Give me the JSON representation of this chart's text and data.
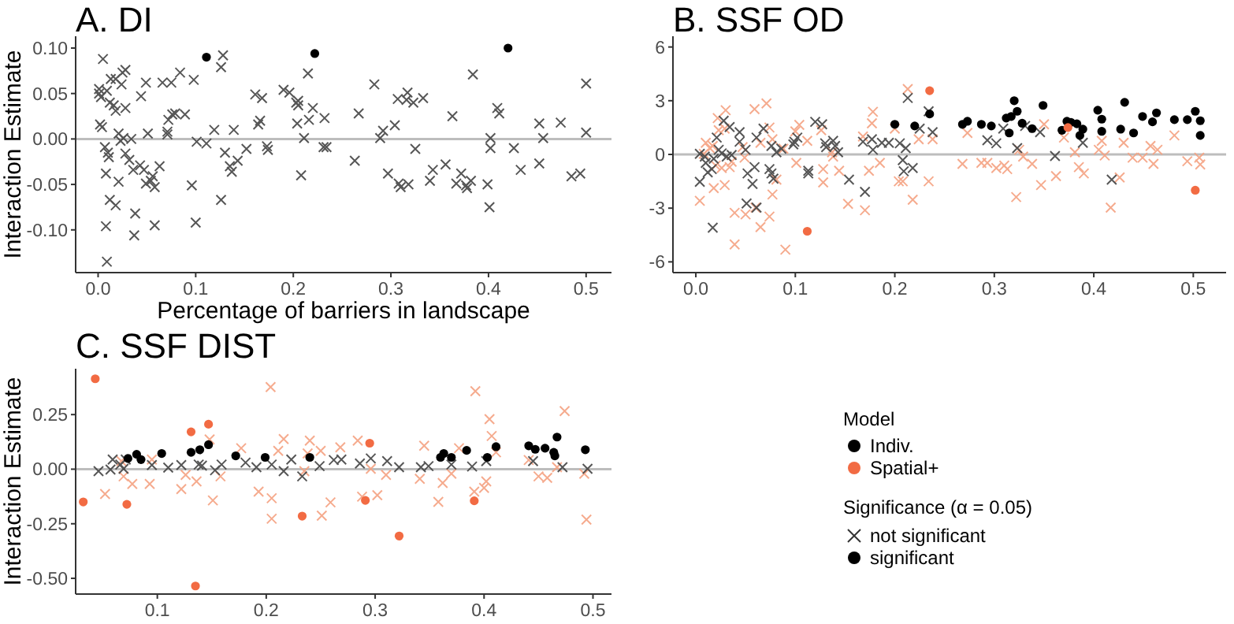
{
  "chart_data": [
    {
      "type": "scatter",
      "title": "A. DI",
      "xlabel": "Percentage of barriers in landscape",
      "ylabel": "Interaction Estimate",
      "xlim": [
        -0.023,
        0.526
      ],
      "ylim": [
        -0.147,
        0.113
      ],
      "xticks": [
        {
          "value": 0,
          "label": "0.0"
        },
        0.1,
        0.2,
        0.3,
        0.4,
        0.5
      ],
      "yticks": [
        {
          "value": -0.1,
          "label": "-0.10"
        },
        {
          "value": -0.05,
          "label": "-0.05"
        },
        {
          "value": 0,
          "label": "0.00"
        },
        {
          "value": 0.05,
          "label": "0.05"
        },
        {
          "value": 0.1,
          "label": "0.10"
        }
      ],
      "ref_lines": [
        {
          "axis": "y",
          "value": 0,
          "color": "#bdbdbd"
        }
      ],
      "legend": false,
      "series": [
        {
          "color": "#444444",
          "marker": "cross",
          "x": [
            0.005,
            0.001,
            0.001,
            0.003,
            0.009,
            0.002,
            0.004,
            0.013,
            0.018,
            0.012,
            0.016,
            0.018,
            0.024,
            0.025,
            0.028,
            0.028,
            0.021,
            0.023,
            0.026,
            0.034,
            0.007,
            0.01,
            0.011,
            0.008,
            0.012,
            0.018,
            0.008,
            0.009,
            0.021,
            0.028,
            0.032,
            0.036,
            0.038,
            0.037,
            0.044,
            0.049,
            0.051,
            0.043,
            0.047,
            0.049,
            0.054,
            0.056,
            0.058,
            0.058,
            0.063,
            0.066,
            0.071,
            0.071,
            0.072,
            0.075,
            0.076,
            0.079,
            0.084,
            0.089,
            0.098,
            0.096,
            0.101,
            0.111,
            0.1,
            0.119,
            0.126,
            0.128,
            0.13,
            0.126,
            0.135,
            0.137,
            0.139,
            0.143,
            0.152,
            0.164,
            0.166,
            0.161,
            0.168,
            0.173,
            0.174,
            0.19,
            0.196,
            0.203,
            0.205,
            0.205,
            0.204,
            0.208,
            0.211,
            0.215,
            0.216,
            0.22,
            0.232,
            0.231,
            0.234,
            0.263,
            0.267,
            0.283,
            0.289,
            0.292,
            0.297,
            0.304,
            0.307,
            0.308,
            0.31,
            0.317,
            0.318,
            0.316,
            0.323,
            0.325,
            0.333,
            0.34,
            0.343,
            0.356,
            0.363,
            0.367,
            0.372,
            0.377,
            0.378,
            0.382,
            0.384,
            0.399,
            0.401,
            0.402,
            0.402,
            0.409,
            0.411,
            0.426,
            0.433,
            0.452,
            0.452,
            0.456,
            0.474,
            0.485,
            0.494,
            0.5,
            0.5
          ],
          "values": [
            0.088,
            0.055,
            0.05,
            0.046,
            0.053,
            0.016,
            0.013,
            0.066,
            0.066,
            0.04,
            0.037,
            0.031,
            0.06,
            0.073,
            0.076,
            0.034,
            0.006,
            -0.002,
            0.001,
            0,
            -0.009,
            -0.015,
            -0.02,
            -0.038,
            -0.067,
            -0.073,
            -0.096,
            -0.135,
            -0.047,
            -0.016,
            -0.023,
            -0.034,
            -0.082,
            -0.106,
            0.047,
            0.062,
            0.006,
            -0.029,
            -0.034,
            -0.049,
            -0.046,
            -0.041,
            -0.053,
            -0.095,
            -0.03,
            0.062,
            0.008,
            0.005,
            0.021,
            0.062,
            0.027,
            0.028,
            0.073,
            0.027,
            0.065,
            -0.051,
            -0.003,
            -0.005,
            -0.092,
            0.01,
            0.079,
            0.092,
            -0.015,
            -0.067,
            -0.03,
            -0.036,
            0.01,
            -0.024,
            -0.011,
            0.016,
            0.02,
            0.049,
            0.045,
            -0.008,
            -0.012,
            0.054,
            0.051,
            0.04,
            0.042,
            0.037,
            0.017,
            -0.04,
            0.001,
            0.072,
            0.021,
            0.034,
            0.023,
            -0.009,
            -0.009,
            -0.024,
            0.028,
            0.06,
            0.001,
            0.009,
            -0.038,
            0.015,
            0.044,
            -0.049,
            -0.053,
            0.051,
            -0.05,
            0.043,
            0.04,
            -0.011,
            0.045,
            -0.046,
            -0.034,
            -0.028,
            0.025,
            -0.049,
            -0.038,
            -0.051,
            -0.054,
            -0.046,
            0.071,
            -0.05,
            -0.075,
            0.001,
            -0.01,
            0.034,
            0.028,
            -0.01,
            -0.034,
            0.017,
            -0.027,
            0.001,
            0.018,
            -0.041,
            -0.038,
            0.061,
            0.007
          ]
        },
        {
          "color": "#000000",
          "marker": "circle",
          "x": [
            0.111,
            0.222,
            0.42
          ],
          "values": [
            0.09,
            0.094,
            0.1
          ]
        }
      ]
    },
    {
      "type": "scatter",
      "title": "B. SSF OD",
      "xlim": [
        -0.023,
        0.533
      ],
      "ylim": [
        -6.6,
        6.6
      ],
      "xticks": [
        {
          "value": 0,
          "label": "0.0"
        },
        0.1,
        0.2,
        0.3,
        0.4,
        0.5
      ],
      "yticks": [
        -6,
        -3,
        0,
        3,
        6
      ],
      "ref_lines": [
        {
          "axis": "y",
          "value": 0,
          "color": "#bdbdbd"
        }
      ],
      "legend": false,
      "series": [
        {
          "color": "#f5a282",
          "marker": "cross",
          "x": [
            0.004,
            0.008,
            0.01,
            0.014,
            0.017,
            0.018,
            0.02,
            0.022,
            0.023,
            0.026,
            0.029,
            0.029,
            0.03,
            0.034,
            0.036,
            0.039,
            0.039,
            0.047,
            0.049,
            0.05,
            0.059,
            0.06,
            0.065,
            0.065,
            0.071,
            0.074,
            0.074,
            0.077,
            0.077,
            0.081,
            0.088,
            0.09,
            0.1,
            0.101,
            0.104,
            0.112,
            0.126,
            0.128,
            0.128,
            0.137,
            0.138,
            0.144,
            0.153,
            0.168,
            0.17,
            0.174,
            0.177,
            0.178,
            0.185,
            0.2,
            0.204,
            0.208,
            0.213,
            0.218,
            0.224,
            0.234,
            0.238,
            0.268,
            0.273,
            0.287,
            0.293,
            0.302,
            0.31,
            0.313,
            0.322,
            0.325,
            0.329,
            0.338,
            0.347,
            0.35,
            0.362,
            0.37,
            0.381,
            0.385,
            0.39,
            0.405,
            0.408,
            0.411,
            0.417,
            0.426,
            0.43,
            0.439,
            0.449,
            0.457,
            0.46,
            0.464,
            0.481,
            0.494,
            0.506,
            0.507
          ],
          "values": [
            -2.59,
            0.03,
            0.65,
            0.35,
            0.47,
            -1.88,
            -0.62,
            2.03,
            1.35,
            -0.76,
            1.44,
            -1.71,
            2.47,
            -0.71,
            -0.41,
            -3.26,
            -5.03,
            0.41,
            -0.18,
            -3.35,
            2.53,
            -2.97,
            0.65,
            -4.06,
            2.85,
            1.5,
            -3.47,
            -2.24,
            0.85,
            -1.41,
            0.32,
            -5.32,
            1.29,
            -0.47,
            1.65,
            0.76,
            1.35,
            -0.82,
            -1.56,
            0.12,
            -0.12,
            -0.91,
            -2.76,
            1.0,
            -3.12,
            -0.91,
            1.74,
            2.38,
            -0.47,
            1.44,
            -1.5,
            -1.5,
            3.65,
            -2.53,
            0.85,
            -1.5,
            0.85,
            -0.53,
            1.2,
            -0.47,
            -0.47,
            -0.76,
            -0.62,
            -0.82,
            -2.38,
            0.26,
            -0.12,
            -0.53,
            -1.71,
            1.68,
            -1.21,
            0.94,
            0.12,
            -0.71,
            -1.06,
            0.26,
            0.76,
            -0.06,
            -2.97,
            -1.29,
            0.65,
            -0.18,
            -0.18,
            0.47,
            -0.53,
            0.26,
            1.06,
            -0.38,
            -0.18,
            -0.56
          ]
        },
        {
          "color": "#444444",
          "marker": "cross",
          "x": [
            0.004,
            0.004,
            0.009,
            0.01,
            0.012,
            0.016,
            0.018,
            0.017,
            0.021,
            0.023,
            0.026,
            0.028,
            0.031,
            0.034,
            0.036,
            0.044,
            0.044,
            0.05,
            0.052,
            0.057,
            0.059,
            0.051,
            0.061,
            0.061,
            0.068,
            0.074,
            0.076,
            0.078,
            0.076,
            0.081,
            0.086,
            0.098,
            0.099,
            0.102,
            0.113,
            0.113,
            0.12,
            0.127,
            0.13,
            0.131,
            0.138,
            0.14,
            0.143,
            0.154,
            0.168,
            0.17,
            0.177,
            0.178,
            0.187,
            0.194,
            0.205,
            0.208,
            0.211,
            0.209,
            0.213,
            0.218,
            0.225,
            0.234,
            0.238,
            0.293,
            0.302,
            0.309,
            0.323,
            0.331,
            0.346,
            0.361,
            0.389,
            0.418
          ],
          "values": [
            0.03,
            -1.53,
            -0.12,
            -0.47,
            -1.0,
            -0.82,
            -0.24,
            -4.09,
            0.94,
            0.26,
            0.06,
            1.88,
            -0.12,
            1.53,
            -0.03,
            1.24,
            0.71,
            0.26,
            -1.06,
            -1.65,
            -0.71,
            -2.74,
            -2.97,
            0.94,
            1.44,
            -0.82,
            -1.06,
            -1.35,
            0.47,
            0.12,
            0.32,
            0.56,
            0.71,
            0.94,
            -0.91,
            -1.06,
            1.82,
            1.68,
            0.62,
            0.41,
            0.76,
            0.47,
            0.12,
            -1.41,
            0.71,
            -2.09,
            0.85,
            0.26,
            0.65,
            0.65,
            0.62,
            -0.32,
            0.35,
            -0.94,
            3.15,
            -0.76,
            1.44,
            2.41,
            1.24,
            0.79,
            0.62,
            1.44,
            0.35,
            1.59,
            1.24,
            -0.09,
            0.65,
            -1.41
          ]
        },
        {
          "color": "#000000",
          "marker": "circle",
          "x": [
            0.2,
            0.22,
            0.235,
            0.268,
            0.273,
            0.287,
            0.297,
            0.312,
            0.315,
            0.317,
            0.32,
            0.323,
            0.328,
            0.338,
            0.349,
            0.368,
            0.373,
            0.377,
            0.383,
            0.386,
            0.389,
            0.404,
            0.408,
            0.408,
            0.427,
            0.431,
            0.44,
            0.449,
            0.459,
            0.463,
            0.481,
            0.494,
            0.502,
            0.507,
            0.507
          ],
          "values": [
            1.68,
            1.59,
            2.26,
            1.68,
            1.85,
            1.68,
            1.59,
            2.03,
            1.2,
            2.12,
            3.0,
            2.41,
            1.74,
            1.44,
            2.74,
            1.35,
            1.85,
            1.79,
            1.71,
            1.06,
            1.41,
            2.47,
            1.97,
            1.29,
            1.41,
            2.91,
            1.2,
            2.12,
            1.82,
            2.32,
            1.94,
            1.94,
            2.41,
            1.88,
            1.06
          ]
        },
        {
          "color": "#f26b43",
          "marker": "circle",
          "x": [
            0.112,
            0.235,
            0.374,
            0.502
          ],
          "values": [
            -4.29,
            3.56,
            1.5,
            -2.0
          ]
        }
      ]
    },
    {
      "type": "scatter",
      "title": "C. SSF DIST",
      "ylabel": "Interaction Estimate",
      "xlim": [
        0.025,
        0.517
      ],
      "ylim": [
        -0.572,
        0.46
      ],
      "xticks": [
        0.1,
        0.2,
        0.3,
        0.4,
        0.5
      ],
      "yticks": [
        {
          "value": -0.5,
          "label": "-0.50"
        },
        {
          "value": -0.25,
          "label": "-0.25"
        },
        {
          "value": 0,
          "label": "0.00"
        },
        {
          "value": 0.25,
          "label": "0.25"
        }
      ],
      "ref_lines": [
        {
          "axis": "y",
          "value": 0,
          "color": "#bdbdbd"
        }
      ],
      "legend": "right",
      "legend_title": "Model",
      "series": [
        {
          "color": "#f5a282",
          "marker": "cross",
          "x": [
            0.052,
            0.067,
            0.069,
            0.077,
            0.095,
            0.093,
            0.122,
            0.126,
            0.136,
            0.148,
            0.151,
            0.158,
            0.177,
            0.193,
            0.204,
            0.205,
            0.205,
            0.216,
            0.211,
            0.235,
            0.238,
            0.24,
            0.25,
            0.251,
            0.259,
            0.268,
            0.284,
            0.288,
            0.296,
            0.302,
            0.31,
            0.341,
            0.345,
            0.358,
            0.362,
            0.37,
            0.377,
            0.391,
            0.392,
            0.4,
            0.402,
            0.405,
            0.407,
            0.411,
            0.441,
            0.45,
            0.458,
            0.474,
            0.467,
            0.492,
            0.494
          ],
          "values": [
            -0.114,
            0.037,
            -0.033,
            -0.068,
            0.044,
            -0.068,
            -0.091,
            -0.026,
            -0.056,
            0.136,
            -0.143,
            -0.033,
            0.096,
            -0.103,
            0.376,
            -0.133,
            -0.227,
            0.138,
            0.084,
            -0.009,
            0.072,
            0.131,
            0.084,
            -0.213,
            -0.152,
            0.1,
            0.131,
            -0.126,
            0.002,
            -0.119,
            -0.026,
            -0.044,
            0.107,
            -0.15,
            -0.063,
            -0.021,
            0.096,
            -0.103,
            0.357,
            -0.086,
            -0.056,
            0.229,
            0.152,
            0.077,
            0.042,
            -0.033,
            -0.04,
            0.266,
            0.009,
            -0.021,
            -0.231
          ]
        },
        {
          "color": "#444444",
          "marker": "cross",
          "x": [
            0.046,
            0.057,
            0.059,
            0.066,
            0.069,
            0.071,
            0.095,
            0.11,
            0.122,
            0.138,
            0.141,
            0.153,
            0.159,
            0.181,
            0.191,
            0.205,
            0.216,
            0.223,
            0.233,
            0.249,
            0.262,
            0.269,
            0.286,
            0.296,
            0.311,
            0.322,
            0.342,
            0.349,
            0.37,
            0.389,
            0.402,
            0.445,
            0.472,
            0.495
          ],
          "values": [
            -0.009,
            -0.002,
            0.044,
            0.021,
            0.002,
            0.044,
            0.019,
            0.007,
            0.019,
            0.021,
            0.016,
            -0.005,
            0.021,
            0.03,
            0.009,
            0.021,
            -0.009,
            0.044,
            -0.033,
            0.014,
            0.042,
            0.044,
            0.026,
            0.049,
            0.037,
            0.009,
            0.009,
            0.014,
            0.021,
            0.012,
            0.037,
            0.037,
            0.009,
            0.002
          ]
        },
        {
          "name": "Indiv.",
          "color": "#000000",
          "marker": "circle",
          "x": [
            0.073,
            0.081,
            0.085,
            0.104,
            0.131,
            0.139,
            0.147,
            0.172,
            0.199,
            0.24,
            0.36,
            0.363,
            0.37,
            0.384,
            0.403,
            0.411,
            0.441,
            0.447,
            0.456,
            0.464,
            0.465,
            0.467,
            0.493
          ],
          "values": [
            0.049,
            0.068,
            0.044,
            0.072,
            0.077,
            0.089,
            0.112,
            0.061,
            0.054,
            0.054,
            0.054,
            0.072,
            0.054,
            0.086,
            0.054,
            0.103,
            0.107,
            0.091,
            0.096,
            0.077,
            0.061,
            0.147,
            0.089
          ]
        },
        {
          "name": "Spatial+",
          "color": "#f26b43",
          "marker": "circle",
          "x": [
            0.043,
            0.032,
            0.072,
            0.131,
            0.147,
            0.135,
            0.233,
            0.291,
            0.295,
            0.322,
            0.391
          ],
          "values": [
            0.414,
            -0.15,
            -0.161,
            0.171,
            0.206,
            -0.535,
            -0.215,
            -0.143,
            0.119,
            -0.306,
            -0.145
          ]
        }
      ]
    },
    {
      "type": "other",
      "title": "Significance (α = 0.05)",
      "annotations": [
        "not significant",
        "significant"
      ]
    }
  ]
}
